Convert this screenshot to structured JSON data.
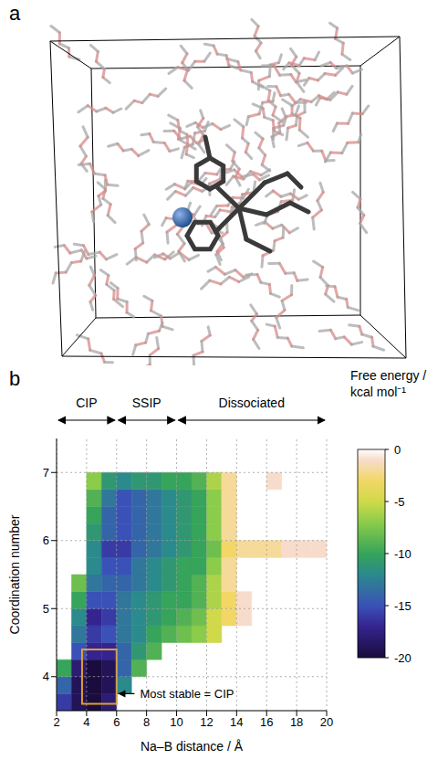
{
  "panel_labels": [
    "a",
    "b"
  ],
  "chart_data": {
    "type": "heatmap",
    "x_label": "Na–B distance / Å",
    "y_label": "Coordination number",
    "xlim": [
      2,
      20
    ],
    "xticks": [
      2,
      4,
      6,
      8,
      10,
      12,
      14,
      16,
      18,
      20
    ],
    "ylim": [
      3.5,
      7.5
    ],
    "yticks": [
      4,
      5,
      6,
      7
    ],
    "grid": true,
    "x": [
      2.5,
      3.5,
      4.5,
      5.5,
      6.5,
      7.5,
      8.5,
      9.5,
      10.5,
      11.5,
      12.5,
      13.5,
      14.5,
      15.5,
      16.5,
      17.5,
      18.5,
      19.5
    ],
    "y": [
      3.625,
      3.875,
      4.125,
      4.375,
      4.625,
      4.875,
      5.125,
      5.375,
      5.625,
      5.875,
      6.125,
      6.375,
      6.625,
      6.875
    ],
    "values": [
      [
        -16,
        -19,
        -20,
        -18,
        null,
        null,
        null,
        null,
        null,
        null,
        null,
        null,
        null,
        null,
        null,
        null,
        null,
        null
      ],
      [
        -14,
        -19,
        -20,
        -19,
        -12,
        null,
        null,
        null,
        null,
        null,
        null,
        null,
        null,
        null,
        null,
        null,
        null,
        null
      ],
      [
        -10,
        -18,
        -20,
        -19,
        -14,
        -9,
        null,
        null,
        null,
        null,
        null,
        null,
        null,
        null,
        null,
        null,
        null,
        null
      ],
      [
        null,
        -15,
        -17,
        -17,
        -14,
        -11,
        -9,
        null,
        null,
        null,
        null,
        null,
        null,
        null,
        null,
        null,
        null,
        null
      ],
      [
        null,
        -13,
        -16,
        -15,
        -13,
        -12,
        -10,
        -9,
        -8,
        -7,
        -5,
        null,
        null,
        null,
        null,
        null,
        null,
        null
      ],
      [
        null,
        -12,
        -17,
        -16,
        -13,
        -12,
        -11,
        -10,
        -9,
        -8,
        -5,
        -3,
        -1,
        null,
        null,
        null,
        null,
        null
      ],
      [
        null,
        -10,
        -15,
        -15,
        -13,
        -12,
        -11,
        -10,
        -10,
        -9,
        -6,
        -3,
        -1,
        null,
        null,
        null,
        null,
        null
      ],
      [
        null,
        -8,
        -13,
        -14,
        -14,
        -13,
        -12,
        -11,
        -10,
        -9,
        -6,
        -2,
        null,
        null,
        null,
        null,
        null,
        null
      ],
      [
        null,
        null,
        -12,
        -15,
        -15,
        -13,
        -12,
        -11,
        -10,
        -10,
        -7,
        -2,
        null,
        null,
        null,
        null,
        null,
        null
      ],
      [
        null,
        null,
        -12,
        -16,
        -16,
        -14,
        -13,
        -12,
        -11,
        -10,
        -8,
        -3,
        -2,
        -2,
        -2,
        -1,
        -1,
        -1
      ],
      [
        null,
        null,
        -11,
        -14,
        -15,
        -14,
        -13,
        -12,
        -11,
        -10,
        -7,
        -2,
        null,
        null,
        null,
        null,
        null,
        null
      ],
      [
        null,
        null,
        -10,
        -14,
        -15,
        -14,
        -13,
        -12,
        -11,
        -10,
        -7,
        -2,
        null,
        null,
        null,
        null,
        null,
        null
      ],
      [
        null,
        null,
        -9,
        -13,
        -15,
        -14,
        -13,
        -12,
        -11,
        -10,
        -7,
        -2,
        null,
        null,
        null,
        null,
        null,
        null
      ],
      [
        null,
        null,
        -7,
        -11,
        -12,
        -11,
        -11,
        -10,
        -10,
        -9,
        -6,
        -2,
        null,
        null,
        -1,
        null,
        null,
        null
      ]
    ],
    "colorbar": {
      "label": "Free energy / kcal mol⁻¹",
      "range": [
        -20,
        0
      ],
      "ticks": [
        0,
        -5,
        -10,
        -15,
        -20
      ]
    },
    "regions": [
      {
        "label": "CIP",
        "x": [
          2,
          6
        ]
      },
      {
        "label": "SSIP",
        "x": [
          6,
          10
        ]
      },
      {
        "label": "Dissociated",
        "x": [
          10,
          20
        ]
      }
    ],
    "highlight": {
      "x": [
        3.7,
        6
      ],
      "y": [
        3.6,
        4.4
      ]
    },
    "annotations": [
      {
        "text": "Most stable = CIP",
        "x": 7.2,
        "y": 3.75,
        "arrow_to": [
          6.1,
          3.75
        ]
      }
    ]
  }
}
